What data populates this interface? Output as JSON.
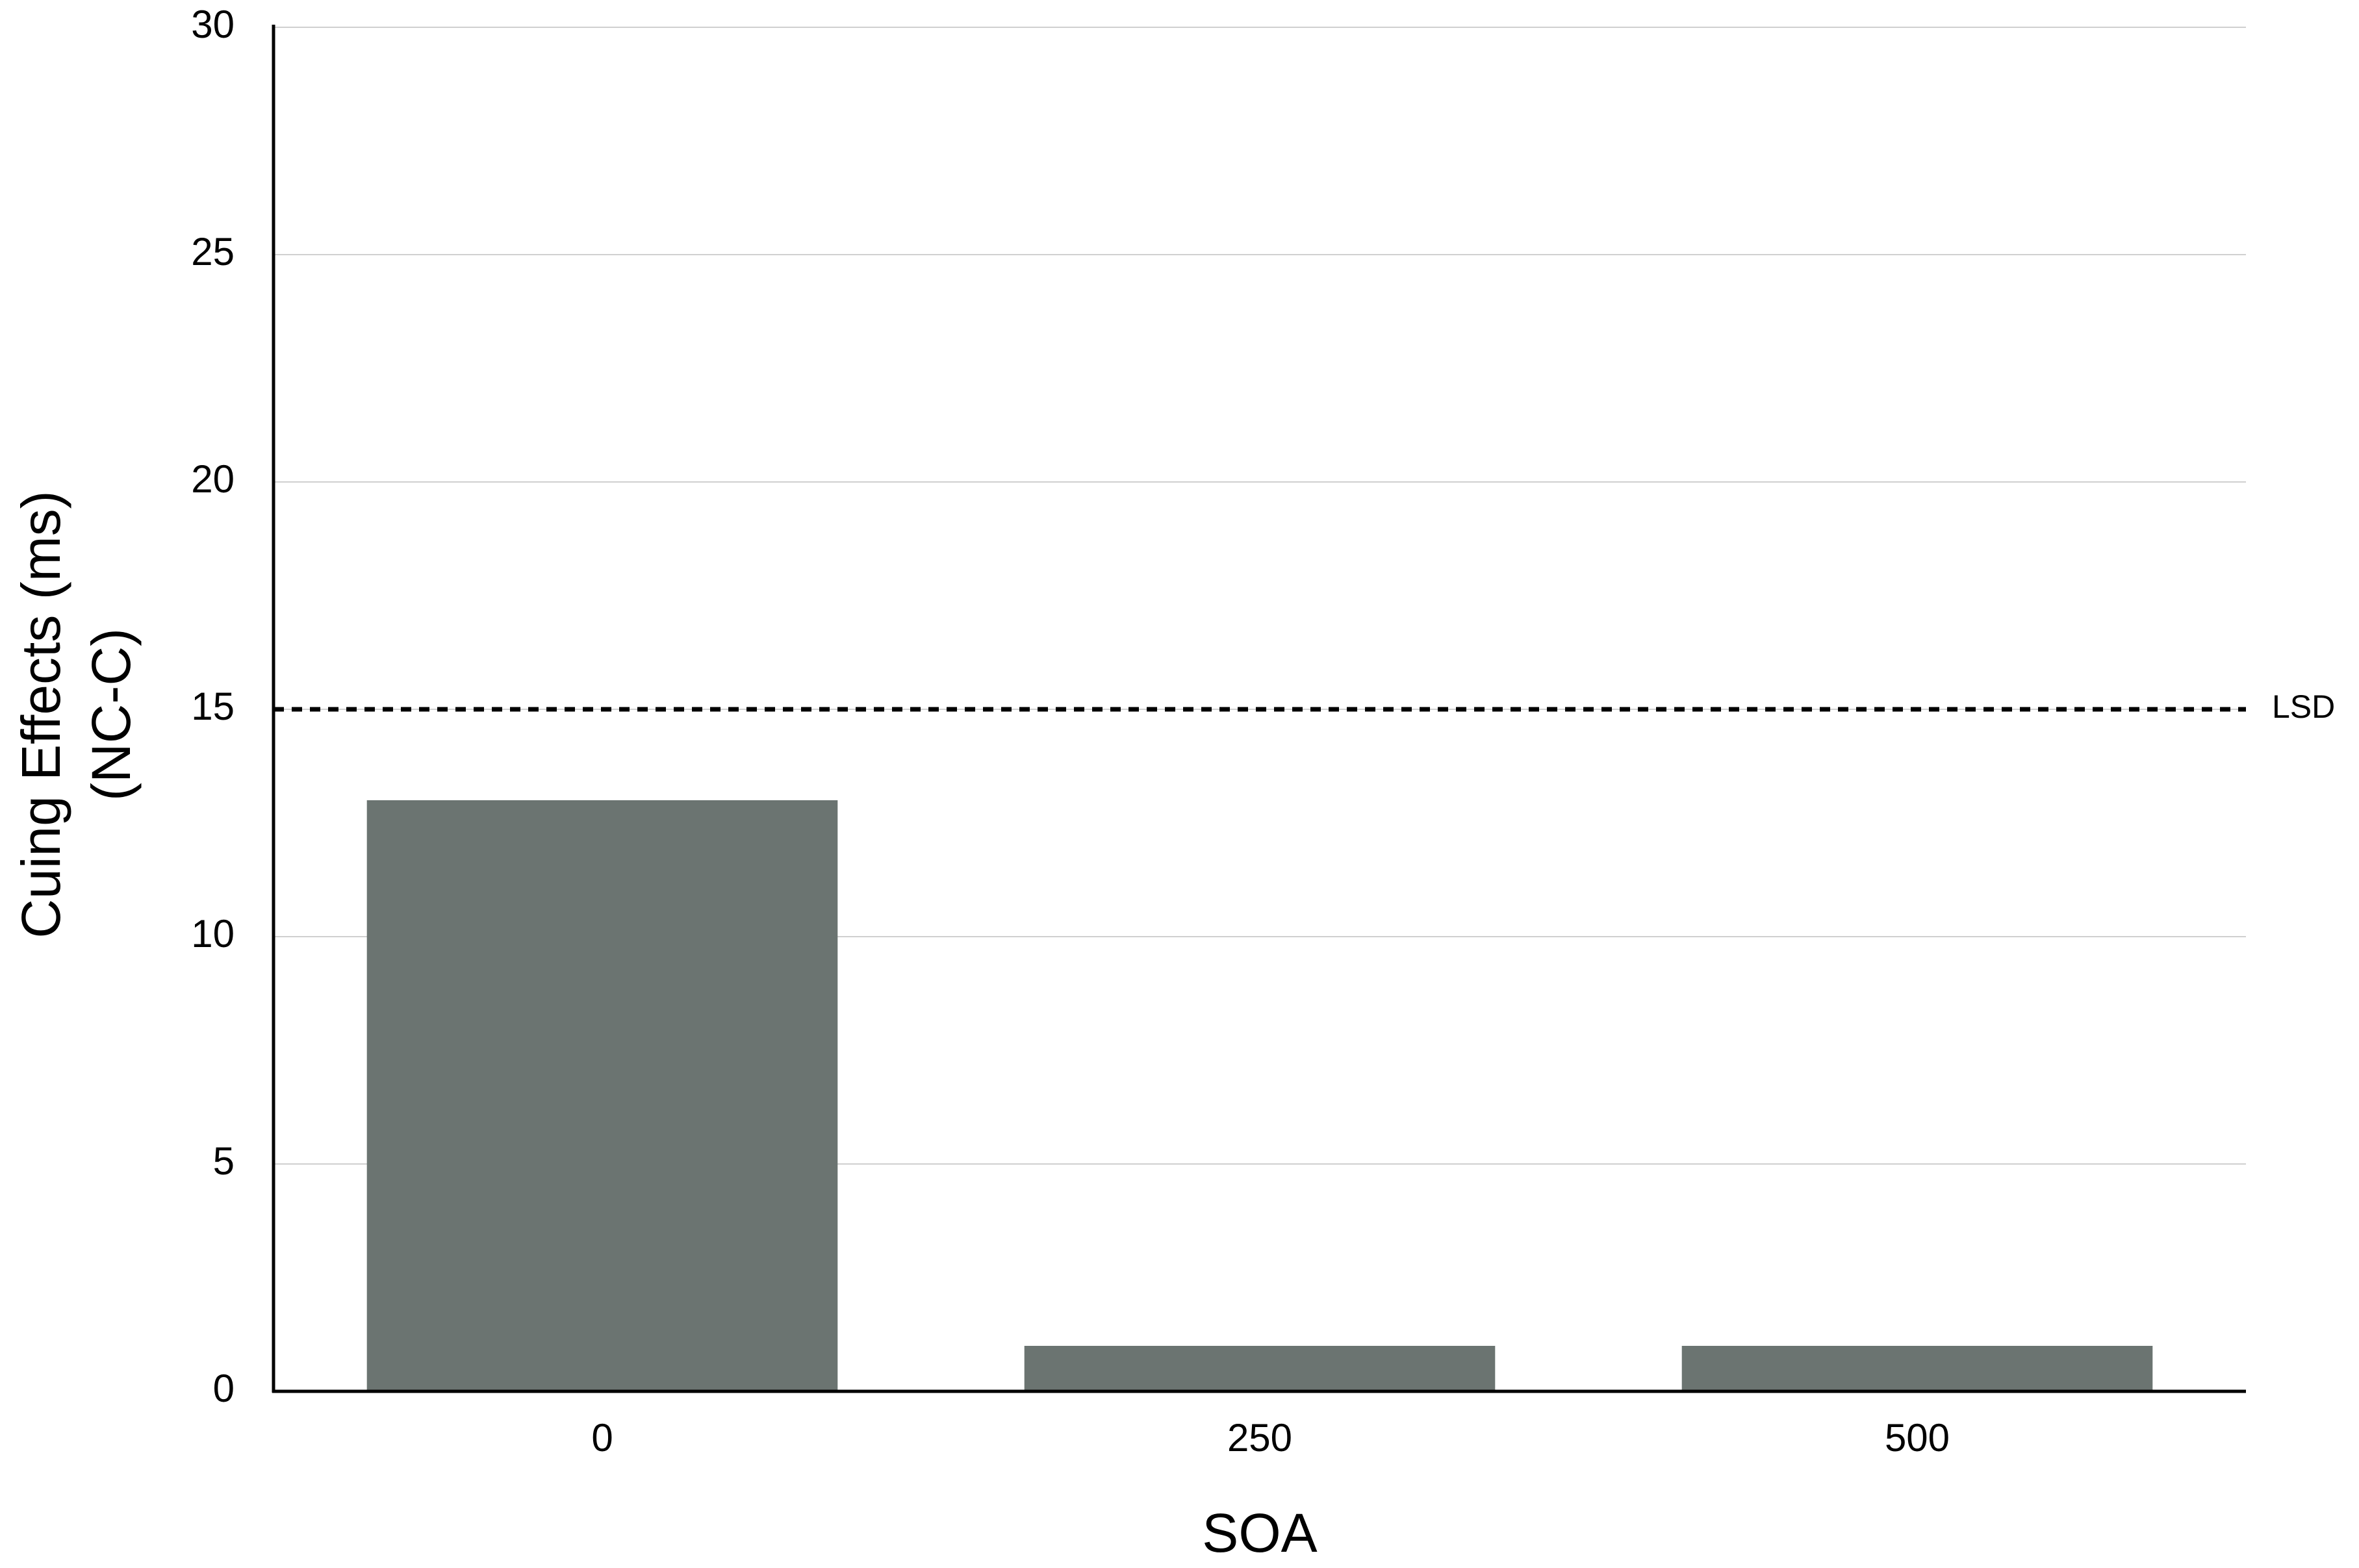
{
  "chart_data": {
    "type": "bar",
    "xlabel": "SOA",
    "ylabel": [
      "Cuing Effects (ms)",
      "(NC-C)"
    ],
    "categories": [
      "0",
      "250",
      "500"
    ],
    "values": [
      13,
      1,
      1
    ],
    "color": "#6b7471",
    "ylim": [
      0,
      30
    ],
    "yticks": [
      0,
      5,
      10,
      15,
      20,
      25,
      30
    ],
    "grid": true,
    "reference_lines": [
      {
        "value": 15,
        "label": "LSD"
      }
    ]
  }
}
